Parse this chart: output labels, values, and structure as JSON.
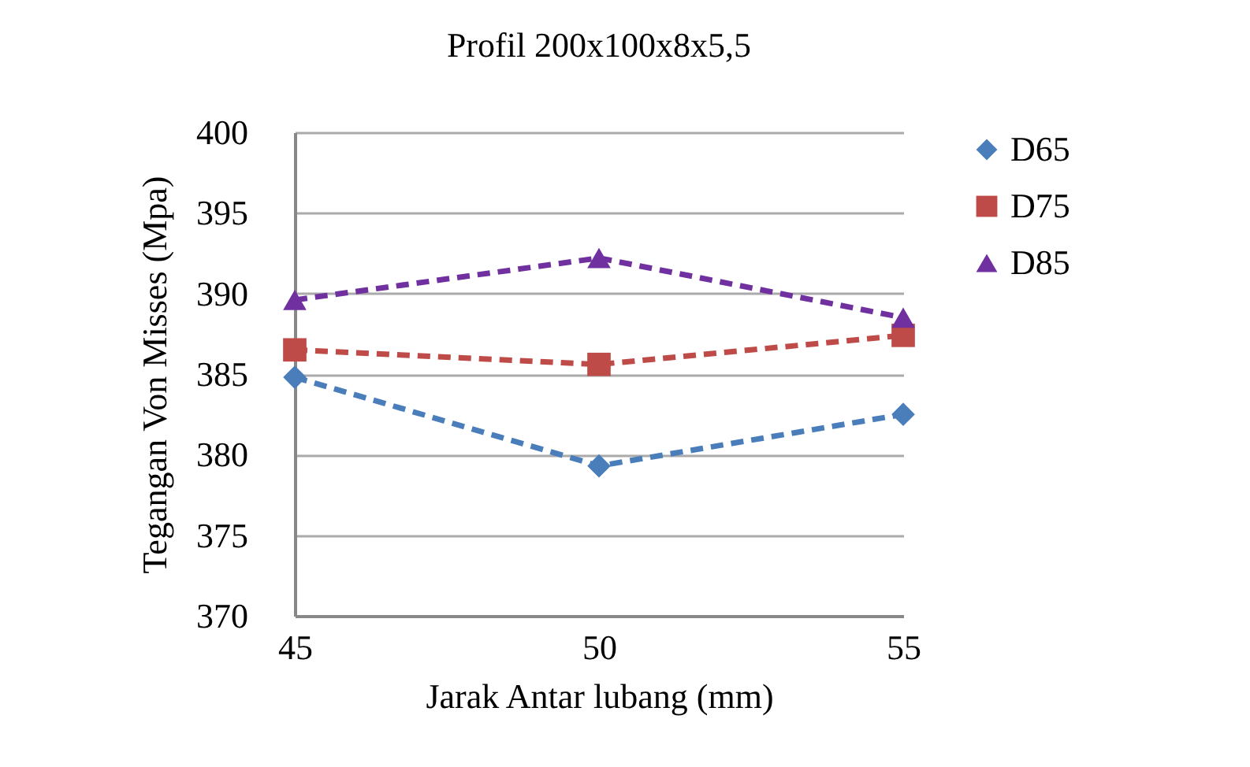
{
  "chart_data": {
    "type": "line",
    "title": "Profil 200x100x8x5,5",
    "xlabel": "Jarak Antar lubang (mm)",
    "ylabel": "Tegangan Von Misses (Mpa)",
    "x": [
      45,
      50,
      55
    ],
    "xlim": [
      45,
      55
    ],
    "xticks": [
      45,
      50,
      55
    ],
    "ylim": [
      370,
      400
    ],
    "yticks": [
      370,
      375,
      380,
      385,
      390,
      395,
      400
    ],
    "grid": "y",
    "legend": "right",
    "line_style": "dashed",
    "series": [
      {
        "name": "D65",
        "color": "#4a7ebb",
        "marker": "diamond",
        "values": [
          384.8,
          379.3,
          382.5
        ]
      },
      {
        "name": "D75",
        "color": "#be4b48",
        "marker": "square",
        "values": [
          386.5,
          385.6,
          387.4
        ]
      },
      {
        "name": "D85",
        "color": "#7030a0",
        "marker": "triangle",
        "values": [
          389.6,
          392.2,
          388.5
        ]
      }
    ]
  }
}
